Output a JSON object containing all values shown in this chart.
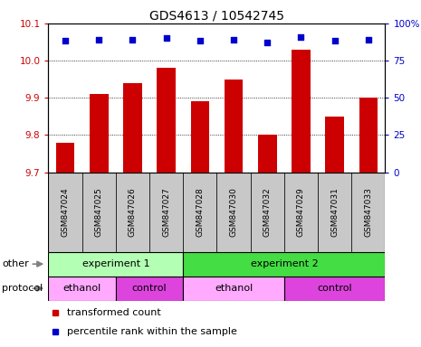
{
  "title": "GDS4613 / 10542745",
  "samples": [
    "GSM847024",
    "GSM847025",
    "GSM847026",
    "GSM847027",
    "GSM847028",
    "GSM847030",
    "GSM847032",
    "GSM847029",
    "GSM847031",
    "GSM847033"
  ],
  "bar_values": [
    9.78,
    9.91,
    9.94,
    9.98,
    9.89,
    9.95,
    9.8,
    10.03,
    9.85,
    9.9
  ],
  "percentile_values": [
    88,
    89,
    89,
    90,
    88,
    89,
    87,
    91,
    88,
    89
  ],
  "ylim_left": [
    9.7,
    10.1
  ],
  "ylim_right": [
    0,
    100
  ],
  "yticks_left": [
    9.7,
    9.8,
    9.9,
    10.0,
    10.1
  ],
  "yticks_right": [
    0,
    25,
    50,
    75,
    100
  ],
  "bar_color": "#cc0000",
  "dot_color": "#0000cc",
  "bar_bottom": 9.7,
  "other_row": [
    {
      "label": "experiment 1",
      "start": 0,
      "end": 4,
      "color": "#b3ffb3"
    },
    {
      "label": "experiment 2",
      "start": 4,
      "end": 10,
      "color": "#44dd44"
    }
  ],
  "protocol_row": [
    {
      "label": "ethanol",
      "start": 0,
      "end": 2,
      "color": "#ffaaff"
    },
    {
      "label": "control",
      "start": 2,
      "end": 4,
      "color": "#dd44dd"
    },
    {
      "label": "ethanol",
      "start": 4,
      "end": 7,
      "color": "#ffaaff"
    },
    {
      "label": "control",
      "start": 7,
      "end": 10,
      "color": "#dd44dd"
    }
  ],
  "legend_bar_label": "transformed count",
  "legend_dot_label": "percentile rank within the sample",
  "other_label": "other",
  "protocol_label": "protocol",
  "gray_bg": "#c8c8c8"
}
